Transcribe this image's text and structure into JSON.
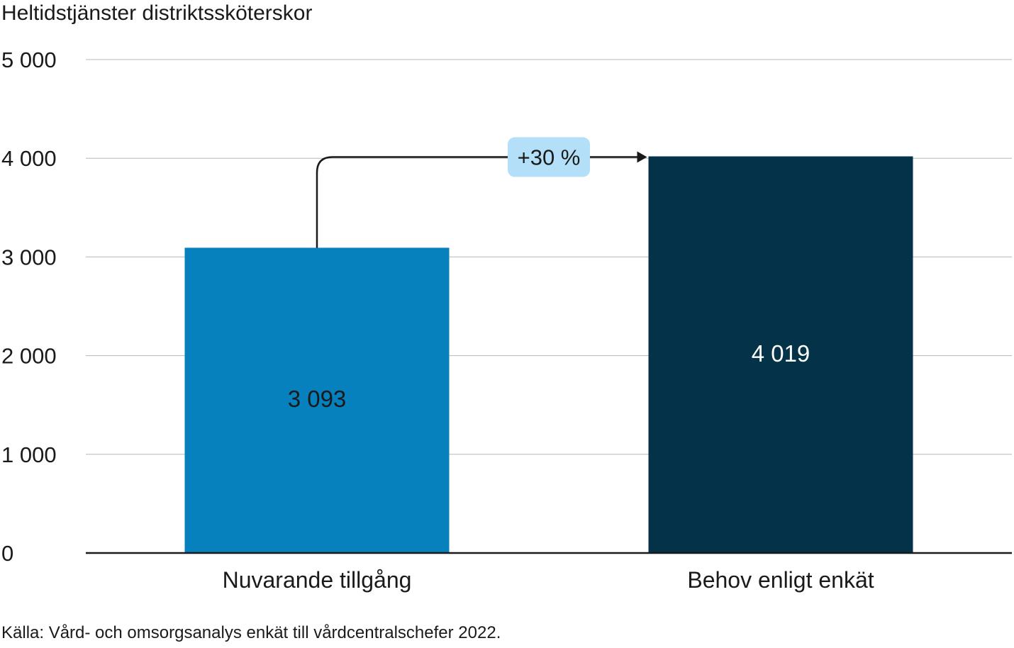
{
  "chart_data": {
    "type": "bar",
    "title": "Heltidstjänster distriktssköterskor",
    "categories": [
      "Nuvarande tillgång",
      "Behov enligt enkät"
    ],
    "values": [
      3093,
      4019
    ],
    "value_labels": [
      "3 093",
      "4 019"
    ],
    "colors": [
      "#0780be",
      "#033249"
    ],
    "value_label_colors": [
      "#1a1a1a",
      "#ffffff"
    ],
    "ylim": [
      0,
      5000
    ],
    "yticks": [
      0,
      1000,
      2000,
      3000,
      4000,
      5000
    ],
    "ytick_labels": [
      "0",
      "1 000",
      "2 000",
      "3 000",
      "4 000",
      "5 000"
    ],
    "grid": true,
    "annotation": {
      "text": "+30 %",
      "from_category": "Nuvarande tillgång",
      "to_category": "Behov enligt enkät",
      "badge_color": "#b3e0f8"
    },
    "source": "Källa: Vård- och omsorgsanalys enkät till vårdcentralschefer 2022."
  }
}
